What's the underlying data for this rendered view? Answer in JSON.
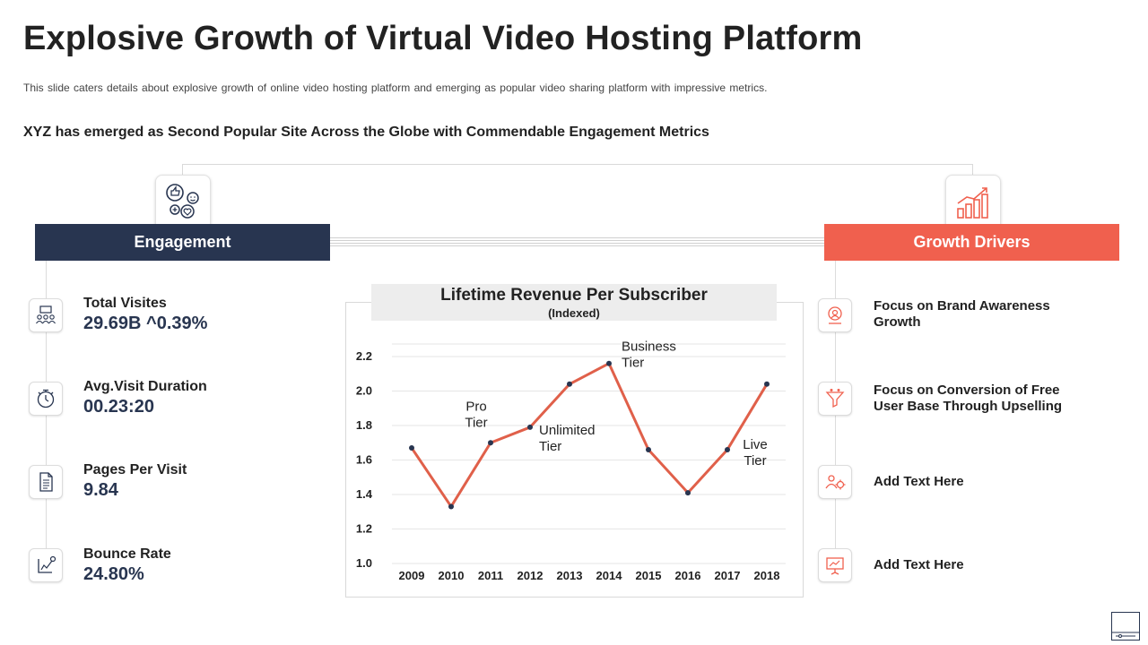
{
  "slide": {
    "title": "Explosive Growth of Virtual Video Hosting Platform",
    "subtitle": "This slide caters details about explosive growth of online video  hosting platform and emerging as popular video sharing platform with impressive  metrics.",
    "headline": "XYZ has emerged as Second Popular Site  Across  the  Globe with Commendable Engagement Metrics"
  },
  "engagement": {
    "heading": "Engagement",
    "header_icon": "thumbs-up-heart-smile-icon",
    "metrics": [
      {
        "label": "Total Visites",
        "value": "29.69B ^0.39%",
        "icon": "audience-icon"
      },
      {
        "label": "Avg.Visit Duration",
        "value": "00.23:20",
        "icon": "stopwatch-icon"
      },
      {
        "label": "Pages Per Visit",
        "value": "9.84",
        "icon": "document-icon"
      },
      {
        "label": "Bounce Rate",
        "value": "24.80%",
        "icon": "bounce-chart-icon"
      }
    ]
  },
  "growth": {
    "heading": "Growth Drivers",
    "header_icon": "growth-bar-chart-icon",
    "items": [
      {
        "text": "Focus on Brand Awareness Growth",
        "icon": "brand-awareness-icon"
      },
      {
        "text": "Focus on Conversion of Free User Base Through Upselling",
        "icon": "conversion-funnel-icon"
      },
      {
        "text": "Add Text Here",
        "icon": "gear-person-icon"
      },
      {
        "text": "Add Text Here",
        "icon": "presentation-icon"
      }
    ]
  },
  "colors": {
    "navy": "#283550",
    "coral": "#f0604e",
    "line": "#e0604a"
  },
  "chart_data": {
    "type": "line",
    "title": "Lifetime Revenue Per Subscriber",
    "subtitle": "(Indexed)",
    "x": [
      "2009",
      "2010",
      "2011",
      "2012",
      "2013",
      "2014",
      "2015",
      "2016",
      "2017",
      "2018"
    ],
    "values": [
      1.67,
      1.33,
      1.7,
      1.79,
      2.04,
      2.16,
      1.66,
      1.41,
      1.66,
      2.04
    ],
    "y_ticks": [
      "1.0",
      "1.2",
      "1.4",
      "1.6",
      "1.8",
      "2.0",
      "2.2"
    ],
    "ylim": [
      1.0,
      2.2
    ],
    "xlabel": "",
    "ylabel": "",
    "grid": true,
    "annotations": [
      {
        "index": 2,
        "text": "Pro Tier"
      },
      {
        "index": 3,
        "text": "Unlimited Tier"
      },
      {
        "index": 5,
        "text": "Business Tier"
      },
      {
        "index": 9,
        "text": "Live Tier"
      }
    ]
  }
}
